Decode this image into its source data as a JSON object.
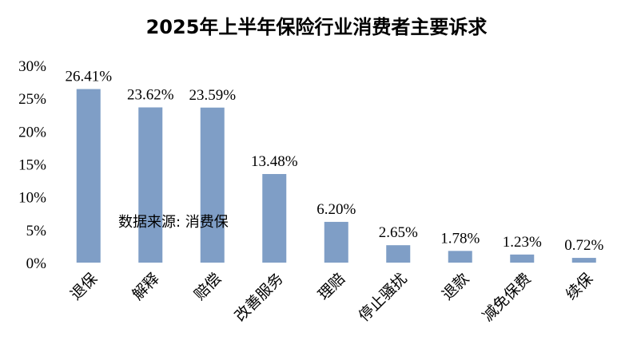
{
  "chart_data": {
    "type": "bar",
    "title": "2025年上半年保险行业消费者主要诉求",
    "categories": [
      "退保",
      "解释",
      "赔偿",
      "改善服务",
      "理赔",
      "停止骚扰",
      "退款",
      "减免保费",
      "续保"
    ],
    "values": [
      26.41,
      23.62,
      23.59,
      13.48,
      6.2,
      2.65,
      1.78,
      1.23,
      0.72
    ],
    "value_labels": [
      "26.41%",
      "23.62%",
      "23.59%",
      "13.48%",
      "6.20%",
      "2.65%",
      "1.78%",
      "1.23%",
      "0.72%"
    ],
    "ylim": [
      0,
      30
    ],
    "yticks": [
      "0%",
      "5%",
      "10%",
      "15%",
      "20%",
      "25%",
      "30%"
    ],
    "xlabel": "",
    "ylabel": "",
    "grid": false,
    "bar_color": "#7f9ec6",
    "annotation": "数据来源:  消费保"
  }
}
